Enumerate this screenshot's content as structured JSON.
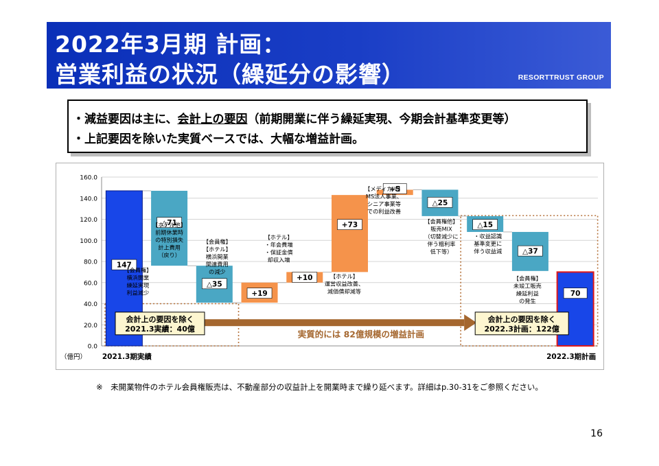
{
  "title": {
    "line1": "2022年3月期 計画：",
    "line2": "営業利益の状況（繰延分の影響）",
    "brand": "RESORTTRUST GROUP"
  },
  "summary": {
    "line1_pre": "・減益要因は主に、",
    "line1_em": "会計上の要因",
    "line1_post": "（前期開業に伴う繰延実現、今期会計基準変更等）",
    "line2": "・上記要因を除いた実質ベースでは、大幅な増益計画。"
  },
  "chart_data": {
    "type": "bar",
    "subtype": "waterfall",
    "ylim": [
      0,
      160
    ],
    "yticks": [
      "0.0",
      "20.0",
      "40.0",
      "60.0",
      "80.0",
      "100.0",
      "120.0",
      "140.0",
      "160.0"
    ],
    "unit_label": "（億円）",
    "x_start_label": "2021.3期実績",
    "x_end_label": "2022.3期計画",
    "gridlines": true,
    "bars": [
      {
        "kind": "total",
        "base": 0,
        "top": 147,
        "label": "147",
        "color": "#1846e8",
        "annotation": [
          "【会員権】",
          "横浜開業",
          "繰延実現",
          "利益減少"
        ]
      },
      {
        "kind": "decrease",
        "base": 76,
        "top": 147,
        "label": "△71",
        "color": "#4aa7c4",
        "annotation": [
          "【ホテル他】",
          "前期休業時",
          "の特別損失",
          "計上費用",
          "（戻り）"
        ]
      },
      {
        "kind": "decrease",
        "base": 41,
        "top": 76,
        "label": "△35",
        "color": "#4aa7c4",
        "annotation": [
          "【会員権】",
          "【ホテル】",
          "横浜開業",
          "関連費用",
          "の減少"
        ]
      },
      {
        "kind": "increase",
        "base": 41,
        "top": 60,
        "label": "+19",
        "color": "#f5934b",
        "annotation": [
          "【ホテル】",
          "・年会費増",
          "・保証金償",
          "却収入増"
        ]
      },
      {
        "kind": "increase",
        "base": 60,
        "top": 70,
        "label": "+10",
        "color": "#f5934b",
        "annotation": [
          "【ホテル】",
          "運営収益改善、",
          "減価償却減等"
        ]
      },
      {
        "kind": "increase",
        "base": 70,
        "top": 143,
        "label": "+73",
        "color": "#f5934b",
        "annotation": [
          "【メディカル】",
          "MS法人事業、",
          "シニア事業等",
          "での利益改善"
        ]
      },
      {
        "kind": "increase",
        "base": 143,
        "top": 148,
        "label": "+5",
        "color": "#f5934b",
        "annotation": []
      },
      {
        "kind": "decrease",
        "base": 123,
        "top": 148,
        "label": "△25",
        "color": "#4aa7c4",
        "annotation": [
          "【会員権他】",
          "販売MIX",
          "（切替減少に",
          "伴う粗利率",
          "低下等）"
        ]
      },
      {
        "kind": "decrease",
        "base": 108,
        "top": 123,
        "label": "△15",
        "color": "#4aa7c4",
        "annotation": [
          "・収益認識",
          "基準変更に",
          "伴う収益減"
        ]
      },
      {
        "kind": "decrease",
        "base": 71,
        "top": 108,
        "label": "△37",
        "color": "#4aa7c4",
        "annotation": [
          "【会員権】",
          "未竣工販売",
          "繰延利益",
          "の発生"
        ]
      },
      {
        "kind": "total",
        "base": 0,
        "top": 70,
        "label": "70",
        "color": "#1846e8",
        "annotation": []
      }
    ],
    "callouts": {
      "left_line1": "会計上の要因を除く",
      "left_line2": "2021.3実績：40億",
      "right_line1": "会計上の要因を除く",
      "right_line2": "2022.3計画：122億",
      "arrow_text": "実質的には 82億規模の増益計画"
    }
  },
  "footnote": "※　未開業物件のホテル会員権販売は、不動産部分の収益計上を開業時まで繰り延べます。詳細はp.30-31をご参照ください。",
  "page_number": "16"
}
